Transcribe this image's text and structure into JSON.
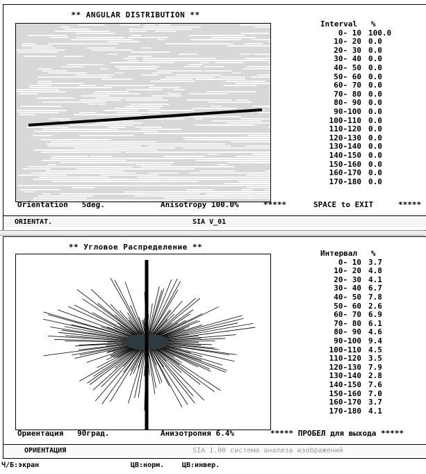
{
  "top": {
    "title": "** ANGULAR DISTRIBUTION **",
    "table_header": "Interval   %",
    "rows": [
      {
        "range": "0- 10",
        "pct": "100.0"
      },
      {
        "range": "10- 20",
        "pct": "0.0"
      },
      {
        "range": "20- 30",
        "pct": "0.0"
      },
      {
        "range": "30- 40",
        "pct": "0.0"
      },
      {
        "range": "40- 50",
        "pct": "0.0"
      },
      {
        "range": "50- 60",
        "pct": "0.0"
      },
      {
        "range": "60- 70",
        "pct": "0.0"
      },
      {
        "range": "70- 80",
        "pct": "0.0"
      },
      {
        "range": "80- 90",
        "pct": "0.0"
      },
      {
        "range": "90-100",
        "pct": "0.0"
      },
      {
        "range": "100-110",
        "pct": "0.0"
      },
      {
        "range": "110-120",
        "pct": "0.0"
      },
      {
        "range": "120-130",
        "pct": "0.0"
      },
      {
        "range": "130-140",
        "pct": "0.0"
      },
      {
        "range": "140-150",
        "pct": "0.0"
      },
      {
        "range": "150-160",
        "pct": "0.0"
      },
      {
        "range": "160-170",
        "pct": "0.0"
      },
      {
        "range": "170-180",
        "pct": "0.0"
      }
    ],
    "orientation": "Orientation   5deg.",
    "anisotropy": "Anisotropy 100.0%",
    "stars_left": "*****",
    "space_hint": "SPACE to EXIT",
    "stars_right": "*****",
    "status_left": "ORIENTAT.",
    "status_mid": "SIA  V_01"
  },
  "bottom": {
    "title": "** Угловое Распределение **",
    "table_header": "Интервал   %",
    "rows": [
      {
        "range": "0- 10",
        "pct": "3.7"
      },
      {
        "range": "10- 20",
        "pct": "4.8"
      },
      {
        "range": "20- 30",
        "pct": "4.1"
      },
      {
        "range": "30- 40",
        "pct": "6.7"
      },
      {
        "range": "40- 50",
        "pct": "7.8"
      },
      {
        "range": "50- 60",
        "pct": "2.6"
      },
      {
        "range": "60- 70",
        "pct": "6.9"
      },
      {
        "range": "70- 80",
        "pct": "6.1"
      },
      {
        "range": "80- 90",
        "pct": "4.6"
      },
      {
        "range": "90-100",
        "pct": "9.4"
      },
      {
        "range": "100-110",
        "pct": "4.5"
      },
      {
        "range": "110-120",
        "pct": "3.5"
      },
      {
        "range": "120-130",
        "pct": "7.9"
      },
      {
        "range": "130-140",
        "pct": "2.8"
      },
      {
        "range": "140-150",
        "pct": "7.6"
      },
      {
        "range": "150-160",
        "pct": "7.0"
      },
      {
        "range": "160-170",
        "pct": "3.7"
      },
      {
        "range": "170-180",
        "pct": "4.1"
      }
    ],
    "orientation": "Ориентация   90град.",
    "anisotropy": "Анизотропия 6.4%",
    "exit_hint": "***** ПРОБЕЛ для выхода *****",
    "status_left": "ОРИЕНТАЦИЯ",
    "status_mid": "SIA 1.00 система анализа изображений"
  },
  "bottombar": {
    "mono": "Ч/Б:экран",
    "color_norm": "ЦВ:норм.",
    "color_inv": "ЦВ:инвер."
  }
}
